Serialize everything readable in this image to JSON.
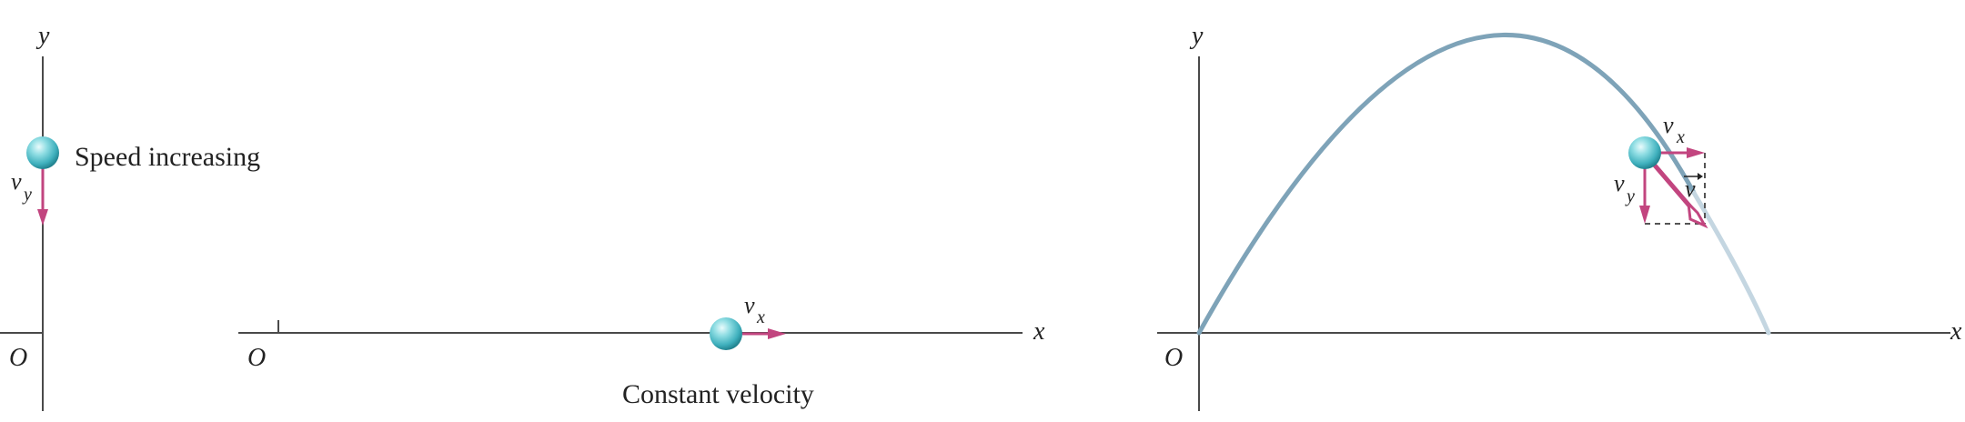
{
  "panel_a": {
    "axis_y_label": "y",
    "origin_label": "O",
    "velocity_label": "v",
    "velocity_subscript": "y",
    "caption": "Speed increasing"
  },
  "panel_b": {
    "axis_x_label": "x",
    "origin_label": "O",
    "velocity_label": "v",
    "velocity_subscript": "x",
    "caption": "Constant velocity"
  },
  "panel_c": {
    "axis_y_label": "y",
    "axis_x_label": "x",
    "origin_label": "O",
    "vx_label": "v",
    "vx_subscript": "x",
    "vy_label": "v",
    "vy_subscript": "y",
    "v_label": "v"
  },
  "colors": {
    "axis": "#4a4a4a",
    "arrow": "#c2457f",
    "trajectory": "#7ea3b8",
    "trajectory_faded": "#c4d6e1",
    "ball": "#5fc3cc"
  }
}
